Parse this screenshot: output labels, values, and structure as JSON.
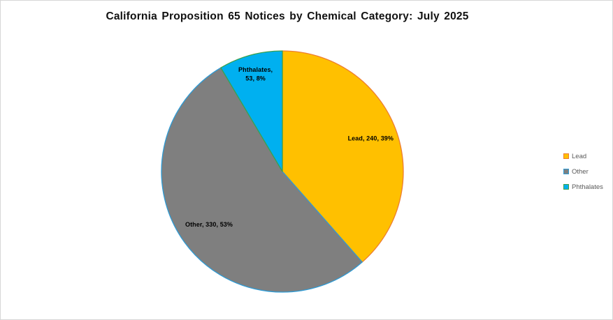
{
  "window": {
    "background_color": "#FFFFFF",
    "border_color": "#D6D6D6"
  },
  "chart": {
    "title": "California Proposition 65 Notices by Chemical Category: July 2025"
  },
  "chart_data": {
    "type": "pie",
    "title": "California Proposition 65 Notices by Chemical Category: July 2025",
    "categories": [
      "Lead",
      "Other",
      "Phthalates"
    ],
    "values": [
      240,
      330,
      53
    ],
    "percent_labels": [
      "39%",
      "53%",
      "8%"
    ],
    "slice_labels": [
      [
        "Lead, 240, 39%"
      ],
      [
        "Other, 330, 53%"
      ],
      [
        "Phthalates,",
        "53, 8%"
      ]
    ],
    "slice_fill_colors": [
      "#FFC000",
      "#7F7F7F",
      "#00B0F0"
    ],
    "slice_border_colors": [
      "#ED7D31",
      "#2E9BD5",
      "#3DA04A"
    ],
    "start_angle_deg": 0,
    "direction": "clockwise",
    "label_text_color": "#000000",
    "legend": {
      "position": "right",
      "entries": [
        "Lead",
        "Other",
        "Phthalates"
      ],
      "text_color": "#595959"
    }
  }
}
